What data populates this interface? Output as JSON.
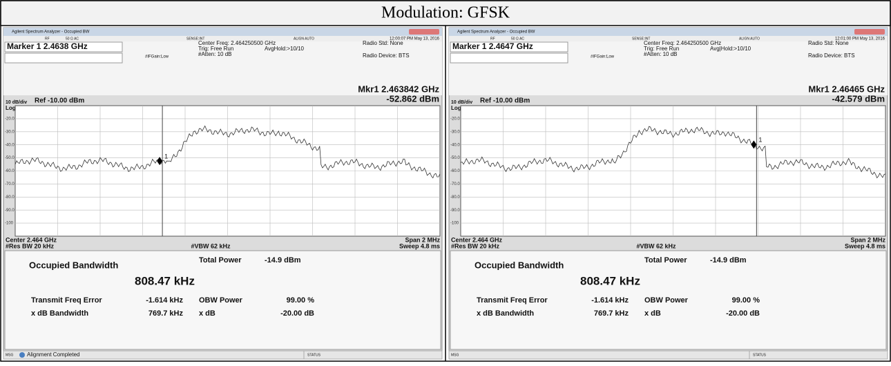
{
  "header": {
    "title": "Modulation: GFSK"
  },
  "panels": [
    {
      "window_title": "Agilent Spectrum Analyzer - Occupied BW",
      "rf": "RF",
      "impedance": "50 Ω  AC",
      "sense": "SENSE:INT",
      "align": "ALIGN AUTO",
      "timestamp": "12:00:07 PM May 13, 2016",
      "marker": "Marker 1 2.4638 GHz",
      "center_freq": "Center Freq: 2.464250500 GHz",
      "trig": "Trig: Free Run",
      "atten": "#Atten: 10 dB",
      "avg_hold": "AvgHold:>10/10",
      "if_gain": "#IFGain:Low",
      "radio_std": "Radio Std: None",
      "radio_device": "Radio Device: BTS",
      "mkr_freq": "Mkr1  2.463842 GHz",
      "mkr_level": "-52.862 dBm",
      "scale": "10 dB/div",
      "ref": "Ref -10.00 dBm",
      "log": "Log",
      "y_labels": [
        "-20.0",
        "-30.0",
        "-40.0",
        "-50.0",
        "-60.0",
        "-70.0",
        "-80.0",
        "-90.0",
        "-100"
      ],
      "marker_id": "1",
      "center": "Center 2.464 GHz",
      "res_bw": "#Res BW  20 kHz",
      "vbw": "#VBW  62 kHz",
      "span": "Span 2 MHz",
      "sweep": "Sweep  4.8 ms",
      "obw_label": "Occupied Bandwidth",
      "obw_value": "808.47 kHz",
      "total_power_label": "Total Power",
      "total_power": "-14.9 dBm",
      "tfe_label": "Transmit Freq Error",
      "tfe": "-1.614 kHz",
      "obw_power_label": "OBW Power",
      "obw_power": "99.00 %",
      "xdb_bw_label": "x dB Bandwidth",
      "xdb_bw": "769.7 kHz",
      "xdb_label": "x dB",
      "xdb": "-20.00 dB",
      "msg": "MSG",
      "status_msg": "Alignment Completed",
      "status": "STATUS"
    },
    {
      "window_title": "Agilent Spectrum Analyzer - Occupied BW",
      "rf": "RF",
      "impedance": "50 Ω  AC",
      "sense": "SENSE:INT",
      "align": "ALIGN AUTO",
      "timestamp": "12:01:00 PM May 13, 2016",
      "marker": "Marker 1 2.4647 GHz",
      "center_freq": "Center Freq: 2.464250500 GHz",
      "trig": "Trig: Free Run",
      "atten": "#Atten: 10 dB",
      "avg_hold": "Avg|Hold:>10/10",
      "if_gain": "#IFGain:Low",
      "radio_std": "Radio Std: None",
      "radio_device": "Radio Device: BTS",
      "mkr_freq": "Mkr1  2.46465 GHz",
      "mkr_level": "-42.579 dBm",
      "scale": "10 dB/div",
      "ref": "Ref -10.00 dBm",
      "log": "Log",
      "y_labels": [
        "-20.0",
        "-30.0",
        "-40.0",
        "-50.0",
        "-60.0",
        "-70.0",
        "-80.0",
        "-90.0",
        "-100"
      ],
      "marker_id": "1",
      "center": "Center 2.464 GHz",
      "res_bw": "#Res BW  20 kHz",
      "vbw": "#VBW  62 kHz",
      "span": "Span 2 MHz",
      "sweep": "Sweep  4.8 ms",
      "obw_label": "Occupied Bandwidth",
      "obw_value": "808.47 kHz",
      "total_power_label": "Total Power",
      "total_power": "-14.9 dBm",
      "tfe_label": "Transmit Freq Error",
      "tfe": "-1.614 kHz",
      "obw_power_label": "OBW Power",
      "obw_power": "99.00 %",
      "xdb_bw_label": "x dB Bandwidth",
      "xdb_bw": "769.7 kHz",
      "xdb_label": "x dB",
      "xdb": "-20.00 dB",
      "msg": "MSG",
      "status": "STATUS"
    }
  ]
}
